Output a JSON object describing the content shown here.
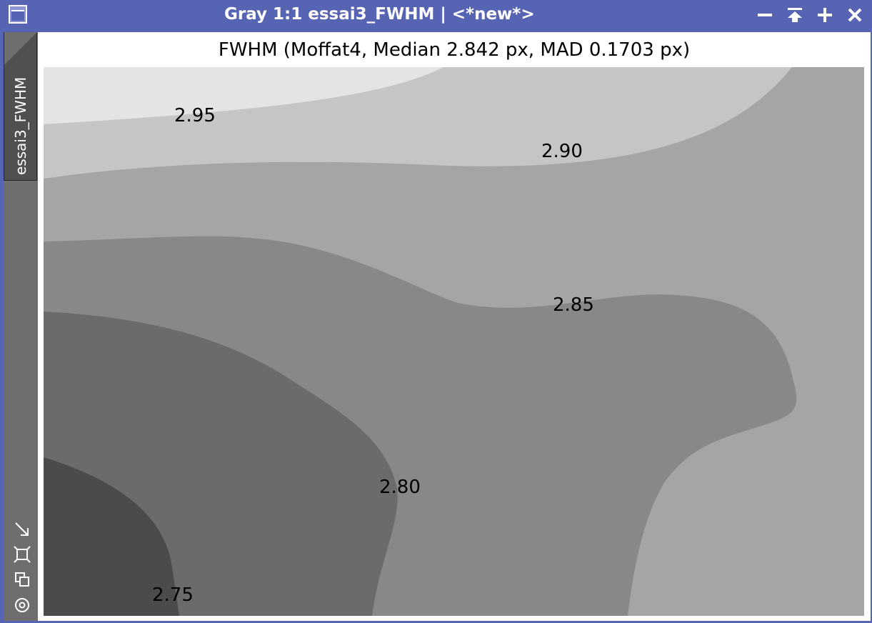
{
  "window": {
    "title": "Gray 1:1 essai3_FWHM | <*new*>",
    "controls": {
      "minimize": "−",
      "shade": "⏶",
      "maximize": "+",
      "close": "✕"
    }
  },
  "sidebar": {
    "tab_label": "essai3_FWHM",
    "tools": [
      "resize-icon",
      "fit-view-icon",
      "clone-icon",
      "target-icon"
    ]
  },
  "colors": {
    "titlebar": "#5763b3",
    "level_2_75_below": "#4b4b4b",
    "level_2_75_2_80": "#6b6b6b",
    "level_2_80_2_85": "#888888",
    "level_2_85_2_90": "#a5a5a5",
    "level_2_90_2_95": "#c5c5c5",
    "level_2_95_above": "#e4e4e4"
  },
  "chart_data": {
    "type": "contour",
    "title": "FWHM (Moffat4, Median 2.842 px, MAD 0.1703 px)",
    "unit": "px",
    "levels": [
      2.75,
      2.8,
      2.85,
      2.9,
      2.95
    ],
    "contour_labels": [
      "2.95",
      "2.90",
      "2.85",
      "2.80",
      "2.75"
    ],
    "median": 2.842,
    "mad": 0.1703
  }
}
